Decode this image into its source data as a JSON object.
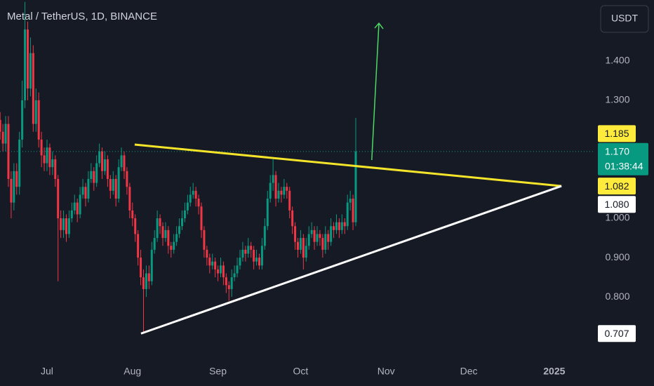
{
  "chart_data": {
    "type": "candlestick",
    "title": "Metal / TetherUS, 1D, BINANCE",
    "currency_button": "USDT",
    "up_color": "#089981",
    "down_color": "#f23645",
    "xlim": [
      -17.05,
      198.8
    ],
    "ylim": [
      0.645,
      1.555
    ],
    "xticks": [
      {
        "value": 0,
        "label": "Jul"
      },
      {
        "value": 31,
        "label": "Aug"
      },
      {
        "value": 62,
        "label": "Sep"
      },
      {
        "value": 92,
        "label": "Oct"
      },
      {
        "value": 123,
        "label": "Nov"
      },
      {
        "value": 153,
        "label": "Dec"
      },
      {
        "value": 184,
        "label": "2025"
      }
    ],
    "yticks": [
      {
        "value": 0.8,
        "label": "0.800"
      },
      {
        "value": 0.9,
        "label": "0.900"
      },
      {
        "value": 1.0,
        "label": "1.000"
      },
      {
        "value": 1.3,
        "label": "1.300"
      },
      {
        "value": 1.4,
        "label": "1.400"
      }
    ],
    "candles": [
      [
        -17,
        1.25,
        1.27,
        1.2,
        1.22
      ],
      [
        -16,
        1.22,
        1.24,
        1.17,
        1.19
      ],
      [
        -15,
        1.19,
        1.26,
        1.17,
        1.24
      ],
      [
        -14,
        1.24,
        1.26,
        1.08,
        1.1
      ],
      [
        -13,
        1.1,
        1.12,
        1.0,
        1.04
      ],
      [
        -12,
        1.04,
        1.14,
        1.02,
        1.12
      ],
      [
        -11,
        1.12,
        1.14,
        1.06,
        1.08
      ],
      [
        -10,
        1.08,
        1.22,
        1.06,
        1.2
      ],
      [
        -9,
        1.2,
        1.35,
        1.18,
        1.3
      ],
      [
        -8,
        1.3,
        1.55,
        1.28,
        1.48
      ],
      [
        -7,
        1.48,
        1.5,
        1.3,
        1.33
      ],
      [
        -6,
        1.33,
        1.46,
        1.31,
        1.42
      ],
      [
        -5,
        1.42,
        1.44,
        1.22,
        1.24
      ],
      [
        -4,
        1.24,
        1.33,
        1.22,
        1.3
      ],
      [
        -3,
        1.3,
        1.32,
        1.18,
        1.2
      ],
      [
        -2,
        1.2,
        1.22,
        1.13,
        1.16
      ],
      [
        -1,
        1.16,
        1.18,
        1.12,
        1.14
      ],
      [
        0,
        1.14,
        1.2,
        1.12,
        1.18
      ],
      [
        1,
        1.18,
        1.19,
        1.11,
        1.13
      ],
      [
        2,
        1.13,
        1.17,
        1.11,
        1.15
      ],
      [
        3,
        1.15,
        1.16,
        1.08,
        1.1
      ],
      [
        4,
        1.1,
        1.11,
        0.84,
        1.0
      ],
      [
        5,
        1.0,
        1.02,
        0.95,
        0.97
      ],
      [
        6,
        0.97,
        1.02,
        0.95,
        1.0
      ],
      [
        7,
        1.0,
        1.01,
        0.94,
        0.96
      ],
      [
        8,
        0.96,
        1.02,
        0.95,
        1.0
      ],
      [
        9,
        1.0,
        1.04,
        0.99,
        1.02
      ],
      [
        10,
        1.02,
        1.06,
        1.01,
        1.04
      ],
      [
        11,
        1.04,
        1.05,
        0.99,
        1.01
      ],
      [
        12,
        1.01,
        1.08,
        1.0,
        1.06
      ],
      [
        13,
        1.06,
        1.1,
        1.05,
        1.08
      ],
      [
        14,
        1.08,
        1.09,
        1.03,
        1.05
      ],
      [
        15,
        1.05,
        1.12,
        1.04,
        1.1
      ],
      [
        16,
        1.1,
        1.14,
        1.09,
        1.12
      ],
      [
        17,
        1.12,
        1.13,
        1.07,
        1.09
      ],
      [
        18,
        1.09,
        1.16,
        1.08,
        1.14
      ],
      [
        19,
        1.14,
        1.19,
        1.13,
        1.17
      ],
      [
        20,
        1.17,
        1.18,
        1.1,
        1.12
      ],
      [
        21,
        1.12,
        1.17,
        1.11,
        1.15
      ],
      [
        22,
        1.15,
        1.16,
        1.08,
        1.1
      ],
      [
        23,
        1.1,
        1.11,
        1.05,
        1.07
      ],
      [
        24,
        1.07,
        1.12,
        1.06,
        1.1
      ],
      [
        25,
        1.1,
        1.11,
        1.03,
        1.05
      ],
      [
        26,
        1.05,
        1.15,
        1.04,
        1.13
      ],
      [
        27,
        1.13,
        1.18,
        1.12,
        1.16
      ],
      [
        28,
        1.16,
        1.17,
        1.1,
        1.12
      ],
      [
        29,
        1.12,
        1.13,
        1.06,
        1.08
      ],
      [
        30,
        1.08,
        1.09,
        1.0,
        1.02
      ],
      [
        31,
        1.02,
        1.04,
        0.98,
        1.0
      ],
      [
        32,
        1.0,
        1.01,
        0.94,
        0.96
      ],
      [
        33,
        0.96,
        0.97,
        0.88,
        0.9
      ],
      [
        34,
        0.9,
        0.92,
        0.83,
        0.85
      ],
      [
        35,
        0.85,
        0.87,
        0.707,
        0.82
      ],
      [
        36,
        0.82,
        0.88,
        0.8,
        0.86
      ],
      [
        37,
        0.86,
        0.88,
        0.82,
        0.84
      ],
      [
        38,
        0.84,
        0.94,
        0.83,
        0.92
      ],
      [
        39,
        0.92,
        0.97,
        0.91,
        0.95
      ],
      [
        40,
        0.95,
        1.02,
        0.94,
        1.0
      ],
      [
        41,
        1.0,
        1.01,
        0.96,
        0.98
      ],
      [
        42,
        0.98,
        0.99,
        0.93,
        0.95
      ],
      [
        43,
        0.95,
        0.99,
        0.94,
        0.97
      ],
      [
        44,
        0.97,
        0.98,
        0.91,
        0.93
      ],
      [
        45,
        0.93,
        0.94,
        0.9,
        0.92
      ],
      [
        46,
        0.92,
        0.96,
        0.91,
        0.94
      ],
      [
        47,
        0.94,
        0.98,
        0.93,
        0.96
      ],
      [
        48,
        0.96,
        1.0,
        0.95,
        0.98
      ],
      [
        49,
        0.98,
        1.02,
        0.97,
        1.0
      ],
      [
        50,
        1.0,
        1.04,
        0.99,
        1.02
      ],
      [
        51,
        1.02,
        1.06,
        1.01,
        1.04
      ],
      [
        52,
        1.04,
        1.08,
        1.03,
        1.06
      ],
      [
        53,
        1.06,
        1.09,
        1.05,
        1.07
      ],
      [
        54,
        1.07,
        1.08,
        1.03,
        1.05
      ],
      [
        55,
        1.05,
        1.06,
        1.01,
        1.03
      ],
      [
        56,
        1.03,
        1.04,
        0.95,
        0.97
      ],
      [
        57,
        0.97,
        0.98,
        0.9,
        0.92
      ],
      [
        58,
        0.92,
        0.93,
        0.88,
        0.9
      ],
      [
        59,
        0.9,
        0.91,
        0.86,
        0.88
      ],
      [
        60,
        0.88,
        0.91,
        0.87,
        0.89
      ],
      [
        61,
        0.89,
        0.9,
        0.85,
        0.87
      ],
      [
        62,
        0.87,
        0.88,
        0.84,
        0.86
      ],
      [
        63,
        0.86,
        0.9,
        0.85,
        0.88
      ],
      [
        64,
        0.88,
        0.89,
        0.83,
        0.85
      ],
      [
        65,
        0.85,
        0.86,
        0.81,
        0.83
      ],
      [
        66,
        0.83,
        0.84,
        0.79,
        0.82
      ],
      [
        67,
        0.82,
        0.87,
        0.8,
        0.85
      ],
      [
        68,
        0.85,
        0.88,
        0.84,
        0.86
      ],
      [
        69,
        0.86,
        0.9,
        0.85,
        0.88
      ],
      [
        70,
        0.88,
        0.92,
        0.87,
        0.9
      ],
      [
        71,
        0.9,
        0.94,
        0.89,
        0.92
      ],
      [
        72,
        0.92,
        0.93,
        0.89,
        0.91
      ],
      [
        73,
        0.91,
        0.95,
        0.9,
        0.93
      ],
      [
        74,
        0.93,
        0.94,
        0.9,
        0.92
      ],
      [
        75,
        0.92,
        0.93,
        0.87,
        0.89
      ],
      [
        76,
        0.89,
        0.92,
        0.88,
        0.9
      ],
      [
        77,
        0.9,
        0.91,
        0.87,
        0.88
      ],
      [
        78,
        0.88,
        0.95,
        0.87,
        0.93
      ],
      [
        79,
        0.93,
        1.0,
        0.92,
        0.98
      ],
      [
        80,
        0.98,
        1.07,
        0.97,
        1.05
      ],
      [
        81,
        1.05,
        1.11,
        1.04,
        1.09
      ],
      [
        82,
        1.09,
        1.15,
        1.07,
        1.11
      ],
      [
        83,
        1.11,
        1.12,
        1.03,
        1.05
      ],
      [
        84,
        1.05,
        1.09,
        1.04,
        1.07
      ],
      [
        85,
        1.07,
        1.08,
        1.04,
        1.06
      ],
      [
        86,
        1.06,
        1.1,
        1.05,
        1.08
      ],
      [
        87,
        1.08,
        1.09,
        1.05,
        1.07
      ],
      [
        88,
        1.07,
        1.08,
        1.0,
        1.02
      ],
      [
        89,
        1.02,
        1.03,
        0.96,
        0.98
      ],
      [
        90,
        0.98,
        0.99,
        0.92,
        0.94
      ],
      [
        91,
        0.94,
        0.95,
        0.9,
        0.92
      ],
      [
        92,
        0.92,
        0.97,
        0.91,
        0.95
      ],
      [
        93,
        0.95,
        0.96,
        0.87,
        0.9
      ],
      [
        94,
        0.9,
        0.95,
        0.89,
        0.93
      ],
      [
        95,
        0.93,
        0.98,
        0.92,
        0.96
      ],
      [
        96,
        0.96,
        0.99,
        0.95,
        0.97
      ],
      [
        97,
        0.97,
        0.98,
        0.92,
        0.94
      ],
      [
        98,
        0.94,
        0.98,
        0.93,
        0.96
      ],
      [
        99,
        0.96,
        0.97,
        0.93,
        0.95
      ],
      [
        100,
        0.95,
        0.96,
        0.9,
        0.92
      ],
      [
        101,
        0.92,
        0.98,
        0.91,
        0.96
      ],
      [
        102,
        0.96,
        0.97,
        0.92,
        0.94
      ],
      [
        103,
        0.94,
        1.0,
        0.93,
        0.98
      ],
      [
        104,
        0.98,
        0.99,
        0.95,
        0.97
      ],
      [
        105,
        0.97,
        1.01,
        0.96,
        0.99
      ],
      [
        106,
        0.99,
        1.0,
        0.95,
        0.97
      ],
      [
        107,
        0.97,
        1.01,
        0.96,
        0.99
      ],
      [
        108,
        0.99,
        1.0,
        0.96,
        0.98
      ],
      [
        109,
        0.98,
        1.06,
        0.97,
        1.04
      ],
      [
        110,
        1.04,
        1.07,
        1.02,
        1.05
      ],
      [
        111,
        1.05,
        1.06,
        0.97,
        0.99
      ],
      [
        112,
        0.99,
        1.255,
        0.98,
        1.17
      ]
    ],
    "trendlines": [
      {
        "color": "#f5e52a",
        "points": [
          [
            31.8,
            1.1875
          ],
          [
            186.6,
            1.082
          ]
        ]
      },
      {
        "color": "#ffffff",
        "points": [
          [
            34.1,
            0.707
          ],
          [
            186.6,
            1.082
          ]
        ]
      }
    ],
    "arrow": {
      "color": "#4cd964",
      "points": [
        [
          117.8,
          1.148
        ],
        [
          120.4,
          1.496
        ]
      ]
    },
    "price_labels": [
      {
        "value": 1.185,
        "label": "1.185",
        "color": "#ffeb3b"
      },
      {
        "value": 1.082,
        "label": "1.082",
        "color": "#ffeb3b"
      },
      {
        "value": 1.08,
        "label": "1.080",
        "color": "#ffffff"
      },
      {
        "value": 0.707,
        "label": "0.707",
        "color": "#ffffff"
      }
    ],
    "last_price": {
      "value": 1.17,
      "label": "1.170",
      "countdown": "01:38:44",
      "color": "#089981"
    }
  }
}
